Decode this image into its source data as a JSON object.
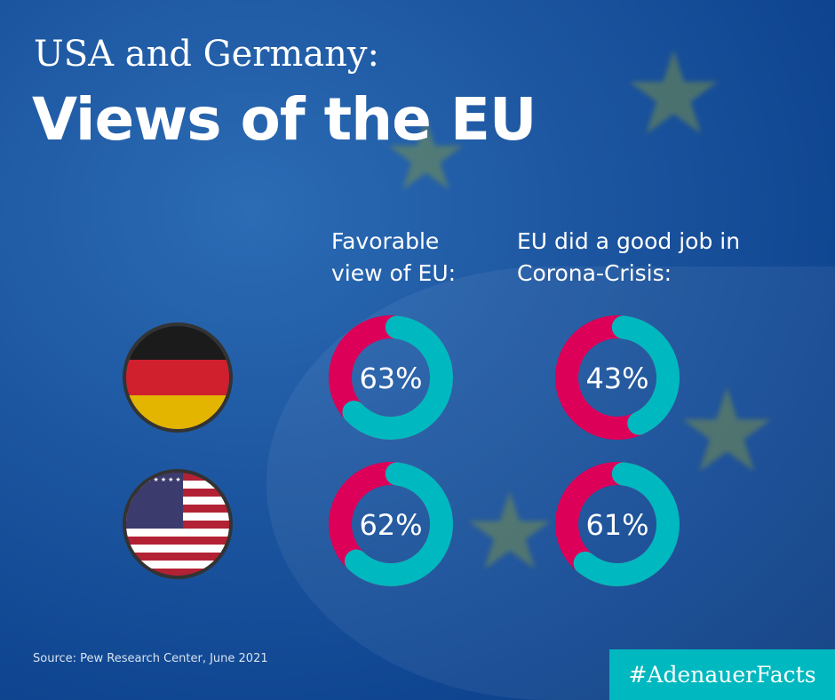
{
  "header": {
    "subtitle": "USA and Germany:",
    "title": "Views of the EU"
  },
  "columns": [
    "Favorable\nview of EU:",
    "EU did a good job in\nCorona-Crisis:"
  ],
  "column_lines": [
    [
      "Favorable",
      "view of EU:"
    ],
    [
      "EU did a good job in",
      "Corona-Crisis:"
    ]
  ],
  "colors": {
    "positive": "#00b8bf",
    "remainder": "#dc0058"
  },
  "chart_data": {
    "type": "pie",
    "title": "Views of the EU",
    "categories": [
      "Germany",
      "USA"
    ],
    "series": [
      {
        "name": "Favorable view of EU",
        "values": [
          63,
          62
        ]
      },
      {
        "name": "EU did a good job in Corona-Crisis",
        "values": [
          43,
          61
        ]
      }
    ],
    "labels": [
      [
        "63%",
        "62%"
      ],
      [
        "43%",
        "61%"
      ]
    ]
  },
  "flags": [
    "germany-flag",
    "usa-flag"
  ],
  "footer": {
    "source": "Source: Pew Research Center, June 2021",
    "hashtag": "#AdenauerFacts"
  }
}
